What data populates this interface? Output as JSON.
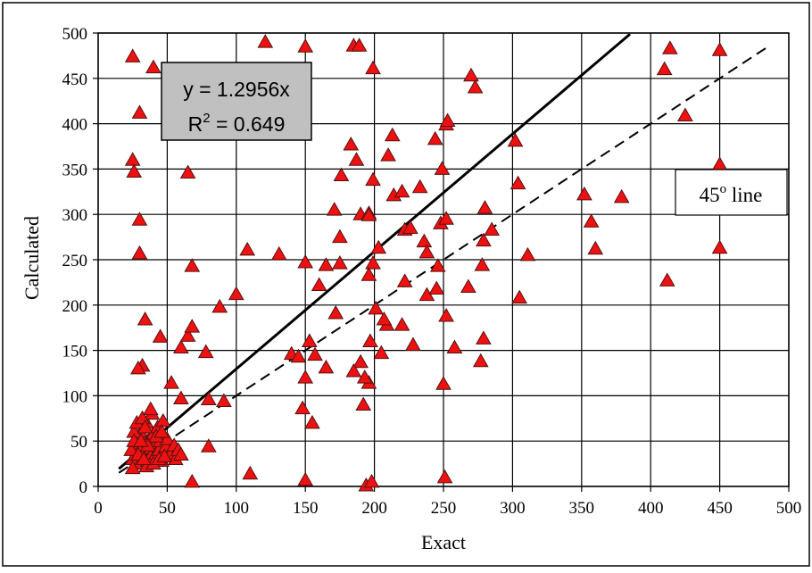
{
  "chart_data": {
    "type": "scatter",
    "title": "",
    "xlabel": "Exact",
    "ylabel": "Calculated",
    "xlim": [
      0,
      500
    ],
    "ylim": [
      0,
      500
    ],
    "xticks": [
      "0",
      "50",
      "100",
      "150",
      "200",
      "250",
      "300",
      "350",
      "400",
      "450",
      "500"
    ],
    "yticks": [
      "0",
      "50",
      "100",
      "150",
      "200",
      "250",
      "300",
      "350",
      "400",
      "450",
      "500"
    ],
    "grid": true,
    "legend": "none",
    "marker": {
      "shape": "triangle",
      "fill": "#ee1111",
      "stroke": "#551111"
    },
    "fit_line": {
      "slope": 1.2956,
      "x_range": [
        15,
        385
      ],
      "style": "solid"
    },
    "identity_line": {
      "slope": 1,
      "x_range": [
        15,
        485
      ],
      "style": "dashed"
    },
    "annotations": {
      "equation": "y = 1.2956x",
      "r2_prefix": "R",
      "r2_sup": "2",
      "r2_value": " = 0.649",
      "line_label_prefix": "45",
      "line_label_sup": "o",
      "line_label_suffix": " line"
    },
    "points": [
      [
        25,
        474
      ],
      [
        40,
        462
      ],
      [
        30,
        412
      ],
      [
        25,
        360
      ],
      [
        26,
        347
      ],
      [
        65,
        346
      ],
      [
        30,
        294
      ],
      [
        30,
        257
      ],
      [
        68,
        243
      ],
      [
        34,
        184
      ],
      [
        32,
        133
      ],
      [
        29,
        130
      ],
      [
        45,
        165
      ],
      [
        65,
        166
      ],
      [
        68,
        176
      ],
      [
        60,
        153
      ],
      [
        78,
        148
      ],
      [
        88,
        198
      ],
      [
        100,
        212
      ],
      [
        108,
        261
      ],
      [
        131,
        256
      ],
      [
        121,
        490
      ],
      [
        150,
        485
      ],
      [
        185,
        486
      ],
      [
        189,
        486
      ],
      [
        199,
        461
      ],
      [
        53,
        114
      ],
      [
        60,
        97
      ],
      [
        80,
        96
      ],
      [
        91,
        94
      ],
      [
        80,
        44
      ],
      [
        110,
        14
      ],
      [
        68,
        5
      ],
      [
        150,
        7
      ],
      [
        155,
        70
      ],
      [
        148,
        86
      ],
      [
        150,
        120
      ],
      [
        153,
        160
      ],
      [
        140,
        146
      ],
      [
        145,
        143
      ],
      [
        157,
        145
      ],
      [
        160,
        222
      ],
      [
        150,
        247
      ],
      [
        165,
        244
      ],
      [
        175,
        246
      ],
      [
        165,
        131
      ],
      [
        172,
        191
      ],
      [
        175,
        275
      ],
      [
        171,
        305
      ],
      [
        176,
        343
      ],
      [
        183,
        377
      ],
      [
        187,
        360
      ],
      [
        190,
        300
      ],
      [
        196,
        301
      ],
      [
        199,
        338
      ],
      [
        196,
        299
      ],
      [
        199,
        246
      ],
      [
        196,
        233
      ],
      [
        197,
        160
      ],
      [
        196,
        114
      ],
      [
        193,
        120
      ],
      [
        190,
        137
      ],
      [
        185,
        127
      ],
      [
        192,
        90
      ],
      [
        194,
        1
      ],
      [
        198,
        5
      ],
      [
        203,
        263
      ],
      [
        201,
        196
      ],
      [
        205,
        147
      ],
      [
        209,
        178
      ],
      [
        207,
        184
      ],
      [
        210,
        365
      ],
      [
        213,
        387
      ],
      [
        214,
        321
      ],
      [
        220,
        325
      ],
      [
        222,
        283
      ],
      [
        226,
        285
      ],
      [
        220,
        178
      ],
      [
        222,
        226
      ],
      [
        228,
        156
      ],
      [
        233,
        330
      ],
      [
        236,
        270
      ],
      [
        238,
        258
      ],
      [
        238,
        211
      ],
      [
        245,
        218
      ],
      [
        246,
        243
      ],
      [
        244,
        383
      ],
      [
        248,
        290
      ],
      [
        249,
        350
      ],
      [
        252,
        399
      ],
      [
        253,
        403
      ],
      [
        252,
        295
      ],
      [
        252,
        188
      ],
      [
        250,
        113
      ],
      [
        251,
        10
      ],
      [
        258,
        153
      ],
      [
        268,
        220
      ],
      [
        270,
        453
      ],
      [
        273,
        440
      ],
      [
        277,
        138
      ],
      [
        279,
        163
      ],
      [
        278,
        244
      ],
      [
        279,
        271
      ],
      [
        280,
        307
      ],
      [
        285,
        283
      ],
      [
        302,
        381
      ],
      [
        304,
        334
      ],
      [
        305,
        208
      ],
      [
        311,
        255
      ],
      [
        352,
        322
      ],
      [
        357,
        292
      ],
      [
        360,
        262
      ],
      [
        379,
        319
      ],
      [
        410,
        460
      ],
      [
        414,
        483
      ],
      [
        412,
        227
      ],
      [
        425,
        409
      ],
      [
        450,
        481
      ],
      [
        450,
        355
      ],
      [
        450,
        263
      ],
      [
        25,
        30
      ],
      [
        27,
        35
      ],
      [
        28,
        45
      ],
      [
        29,
        55
      ],
      [
        30,
        25
      ],
      [
        31,
        60
      ],
      [
        32,
        38
      ],
      [
        33,
        42
      ],
      [
        34,
        48
      ],
      [
        35,
        70
      ],
      [
        36,
        28
      ],
      [
        37,
        52
      ],
      [
        38,
        33
      ],
      [
        39,
        80
      ],
      [
        40,
        58
      ],
      [
        41,
        45
      ],
      [
        42,
        36
      ],
      [
        43,
        65
      ],
      [
        44,
        40
      ],
      [
        45,
        50
      ],
      [
        46,
        28
      ],
      [
        47,
        72
      ],
      [
        48,
        38
      ],
      [
        49,
        44
      ],
      [
        50,
        52
      ],
      [
        25,
        20
      ],
      [
        26,
        60
      ],
      [
        28,
        70
      ],
      [
        35,
        22
      ],
      [
        40,
        25
      ],
      [
        44,
        30
      ],
      [
        52,
        35
      ],
      [
        55,
        45
      ],
      [
        56,
        30
      ],
      [
        58,
        40
      ],
      [
        60,
        35
      ],
      [
        32,
        75
      ],
      [
        38,
        85
      ],
      [
        30,
        40
      ],
      [
        36,
        45
      ],
      [
        42,
        55
      ],
      [
        34,
        65
      ],
      [
        46,
        60
      ],
      [
        48,
        33
      ],
      [
        24,
        40
      ],
      [
        26,
        50
      ],
      [
        29,
        35
      ],
      [
        31,
        50
      ],
      [
        33,
        30
      ]
    ]
  }
}
